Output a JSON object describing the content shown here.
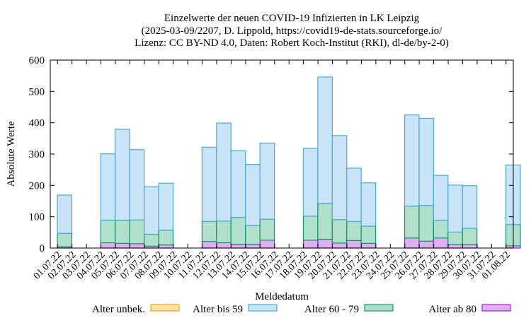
{
  "chart_data": {
    "type": "bar",
    "stacked": true,
    "title_lines": [
      "Einzelwerte der neuen COVID-19 Infizierten in LK Leipzig",
      "(2025-03-09/2207, D. Lippold, https://covid19-de-stats.sourceforge.io/",
      "Lizenz: CC BY-ND 4.0, Daten: Robert Koch-Institut (RKI), dl-de/by-2-0)"
    ],
    "xlabel": "Meldedatum",
    "ylabel": "Absolute Werte",
    "ylim": [
      0,
      600
    ],
    "yticks": [
      0,
      100,
      200,
      300,
      400,
      500,
      600
    ],
    "grid": false,
    "legend_position": "bottom",
    "categories": [
      "01.07.22",
      "02.07.22",
      "03.07.22",
      "04.07.22",
      "05.07.22",
      "06.07.22",
      "07.07.22",
      "08.07.22",
      "09.07.22",
      "10.07.22",
      "11.07.22",
      "12.07.22",
      "13.07.22",
      "14.07.22",
      "15.07.22",
      "16.07.22",
      "17.07.22",
      "18.07.22",
      "19.07.22",
      "20.07.22",
      "21.07.22",
      "22.07.22",
      "23.07.22",
      "24.07.22",
      "25.07.22",
      "26.07.22",
      "27.07.22",
      "28.07.22",
      "29.07.22",
      "30.07.22",
      "31.07.22",
      "01.08.22"
    ],
    "series": [
      {
        "name": "Alter unbek.",
        "fill": "#fce3a6",
        "stroke": "#e9a020",
        "values": [
          0,
          0,
          0,
          0,
          0,
          0,
          0,
          0,
          0,
          0,
          0,
          0,
          0,
          0,
          0,
          0,
          0,
          0,
          0,
          0,
          0,
          0,
          0,
          0,
          0,
          0,
          0,
          0,
          0,
          0,
          0,
          0
        ]
      },
      {
        "name": "Alter bis 59",
        "fill": "#c9e4f6",
        "stroke": "#4baad9",
        "values": [
          122,
          0,
          0,
          212,
          290,
          224,
          152,
          150,
          0,
          0,
          237,
          313,
          213,
          195,
          243,
          0,
          0,
          216,
          403,
          268,
          170,
          138,
          0,
          0,
          291,
          278,
          144,
          150,
          136,
          0,
          0,
          190
        ]
      },
      {
        "name": "Alter 60 - 79",
        "fill": "#b0e0cc",
        "stroke": "#12956a",
        "values": [
          43,
          0,
          0,
          72,
          74,
          76,
          38,
          47,
          0,
          0,
          64,
          69,
          86,
          60,
          67,
          0,
          0,
          77,
          115,
          75,
          61,
          55,
          0,
          0,
          102,
          114,
          56,
          40,
          52,
          0,
          0,
          68
        ]
      },
      {
        "name": "Alter ab 80",
        "fill": "#ddb0ee",
        "stroke": "#a020d0",
        "values": [
          4,
          0,
          0,
          17,
          15,
          14,
          6,
          10,
          0,
          0,
          21,
          17,
          12,
          12,
          25,
          0,
          0,
          25,
          28,
          16,
          24,
          15,
          0,
          0,
          32,
          22,
          32,
          11,
          11,
          0,
          0,
          7
        ]
      }
    ]
  }
}
